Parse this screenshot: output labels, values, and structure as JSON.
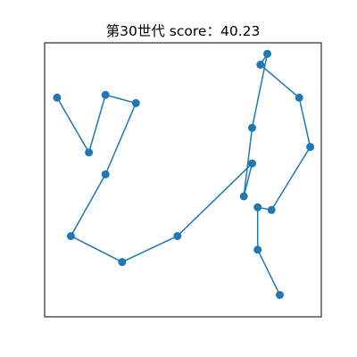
{
  "chart_data": {
    "type": "line",
    "title": "第30世代 score：40.23",
    "xlabel": "",
    "ylabel": "",
    "xlim": [
      0,
      100
    ],
    "ylim": [
      0,
      100
    ],
    "grid": false,
    "axis_ticks": false,
    "line_color": "#1f77b4",
    "marker": "circle",
    "series": [
      {
        "x": [
          4.5,
          16,
          22,
          33,
          22,
          9.5,
          28,
          48,
          75,
          72,
          75,
          80.5,
          78,
          92,
          96,
          82,
          77,
          77,
          85
        ],
        "y": [
          80,
          60,
          81,
          78,
          52,
          29.5,
          20,
          29.5,
          56,
          44,
          69,
          96,
          92,
          80,
          62,
          39,
          40,
          24.5,
          8
        ]
      }
    ]
  }
}
